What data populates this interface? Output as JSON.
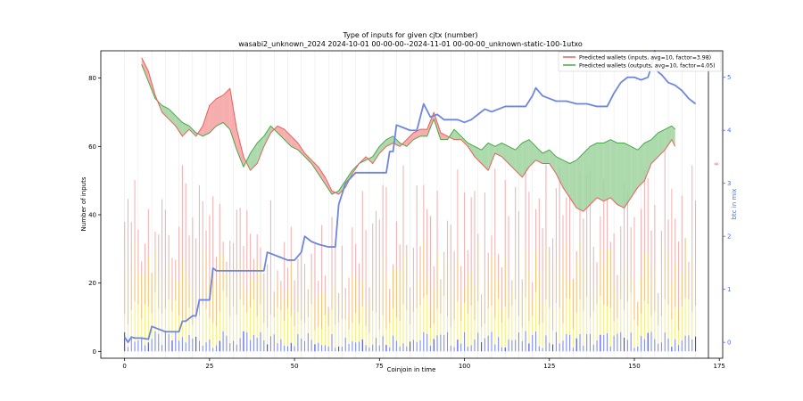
{
  "chart_data": {
    "type": "line",
    "title": "Type of inputs for given cjtx (number)",
    "subtitle": "wasabi2_unknown_2024 2024-10-01 00-00-00--2024-11-01 00-00-00_unknown-static-100-1utxo",
    "xlabel": "Coinjoin in time",
    "ylabel": "Number of inputs",
    "y2label": "btc in mix",
    "xlim": [
      -7,
      176
    ],
    "ylim": [
      -2,
      88
    ],
    "y2lim": [
      -0.3,
      5.5
    ],
    "x_ticks": [
      0,
      25,
      50,
      75,
      100,
      125,
      150,
      175
    ],
    "y_ticks": [
      0,
      20,
      40,
      60,
      80
    ],
    "y2_ticks": [
      0,
      1,
      2,
      3,
      4,
      5
    ],
    "right_marker_label": "∞",
    "grid": "vertical",
    "legend_position": "top-right",
    "legend": [
      {
        "label": "Predicted wallets (inputs, avg=10, factor=3.98)",
        "color": "#e8605a"
      },
      {
        "label": "Predicted wallets (outputs, avg=10, factor=4.05)",
        "color": "#4aa84a"
      }
    ],
    "series_inputs": {
      "color": "#e8605a",
      "x": [
        5,
        7,
        9,
        11,
        13,
        15,
        17,
        19,
        21,
        23,
        25,
        27,
        29,
        31,
        33,
        35,
        37,
        39,
        41,
        43,
        45,
        47,
        49,
        51,
        53,
        55,
        57,
        59,
        61,
        63,
        65,
        67,
        69,
        71,
        73,
        75,
        77,
        79,
        81,
        83,
        85,
        87,
        89,
        91,
        93,
        95,
        97,
        99,
        101,
        103,
        105,
        107,
        109,
        111,
        113,
        115,
        117,
        119,
        121,
        123,
        125,
        127,
        129,
        131,
        133,
        135,
        137,
        139,
        141,
        143,
        145,
        147,
        149,
        151,
        153,
        155,
        157,
        159,
        161,
        162
      ],
      "values": [
        86,
        82,
        75,
        70,
        68,
        66,
        63,
        65,
        63,
        66,
        72,
        74,
        75,
        77,
        65,
        57,
        53,
        55,
        60,
        64,
        66,
        65,
        63,
        61,
        58,
        56,
        54,
        51,
        47,
        46,
        48,
        52,
        55,
        57,
        55,
        58,
        60,
        61,
        60,
        62,
        64,
        65,
        65,
        70,
        64,
        63,
        62,
        62,
        60,
        57,
        55,
        53,
        58,
        57,
        55,
        53,
        51,
        54,
        56,
        55,
        55,
        52,
        48,
        45,
        42,
        41,
        43,
        45,
        44,
        45,
        43,
        42,
        45,
        48,
        50,
        55,
        57,
        59,
        62,
        60
      ]
    },
    "series_outputs": {
      "color": "#4aa84a",
      "x": [
        5,
        7,
        9,
        11,
        13,
        15,
        17,
        19,
        21,
        23,
        25,
        27,
        29,
        31,
        33,
        35,
        37,
        39,
        41,
        43,
        45,
        47,
        49,
        51,
        53,
        55,
        57,
        59,
        61,
        63,
        65,
        67,
        69,
        71,
        73,
        75,
        77,
        79,
        81,
        83,
        85,
        87,
        89,
        91,
        93,
        95,
        97,
        99,
        101,
        103,
        105,
        107,
        109,
        111,
        113,
        115,
        117,
        119,
        121,
        123,
        125,
        127,
        129,
        131,
        133,
        135,
        137,
        139,
        141,
        143,
        145,
        147,
        149,
        151,
        153,
        155,
        157,
        159,
        161,
        162
      ],
      "values": [
        84,
        79,
        74,
        72,
        71,
        69,
        67,
        66,
        64,
        63,
        64,
        66,
        67,
        65,
        59,
        54,
        58,
        61,
        63,
        66,
        64,
        62,
        60,
        59,
        57,
        55,
        52,
        49,
        46,
        47,
        50,
        53,
        55,
        56,
        57,
        60,
        62,
        63,
        61,
        60,
        62,
        63,
        63,
        68,
        62,
        62,
        65,
        63,
        61,
        60,
        59,
        61,
        60,
        61,
        60,
        59,
        61,
        62,
        60,
        58,
        59,
        57,
        56,
        55,
        56,
        58,
        60,
        61,
        61,
        62,
        61,
        61,
        60,
        59,
        61,
        62,
        64,
        65,
        66,
        65
      ]
    },
    "series_btc": {
      "color": "#6f86e0",
      "x": [
        0,
        1,
        2,
        3,
        5,
        7,
        8,
        10,
        12,
        14,
        16,
        17,
        18,
        20,
        21,
        22,
        23,
        24,
        25,
        26,
        27,
        30,
        34,
        38,
        40,
        41,
        42,
        44,
        46,
        48,
        50,
        52,
        53,
        55,
        57,
        60,
        62,
        63,
        65,
        68,
        70,
        73,
        75,
        77,
        78,
        79,
        80,
        82,
        84,
        86,
        88,
        90,
        92,
        94,
        96,
        98,
        100,
        102,
        104,
        106,
        108,
        110,
        112,
        114,
        116,
        118,
        120,
        121,
        123,
        125,
        127,
        130,
        133,
        136,
        139,
        142,
        144,
        146,
        148,
        150,
        152,
        154,
        155,
        156,
        157,
        158,
        160,
        162,
        164,
        166,
        168
      ],
      "values": [
        0.1,
        0.0,
        0.1,
        0.08,
        0.08,
        0.06,
        0.3,
        0.25,
        0.2,
        0.2,
        0.2,
        0.4,
        0.4,
        0.5,
        0.5,
        0.8,
        0.8,
        0.8,
        0.8,
        1.4,
        1.35,
        1.35,
        1.35,
        1.35,
        1.35,
        1.35,
        1.7,
        1.65,
        1.6,
        1.55,
        1.55,
        1.7,
        2.0,
        1.9,
        1.85,
        1.8,
        1.8,
        2.6,
        3.0,
        3.2,
        3.2,
        3.2,
        3.2,
        3.2,
        3.6,
        3.6,
        4.1,
        4.05,
        4.0,
        4.0,
        4.5,
        4.25,
        4.3,
        4.2,
        4.2,
        4.2,
        4.15,
        4.2,
        4.3,
        4.4,
        4.35,
        4.4,
        4.45,
        4.45,
        4.45,
        4.45,
        4.65,
        4.8,
        4.65,
        4.6,
        4.55,
        4.55,
        4.5,
        4.5,
        4.45,
        4.45,
        4.7,
        4.9,
        5.0,
        5.0,
        4.95,
        5.0,
        5.2,
        5.5,
        5.1,
        5.05,
        4.9,
        4.85,
        4.75,
        4.6,
        4.5
      ]
    }
  }
}
